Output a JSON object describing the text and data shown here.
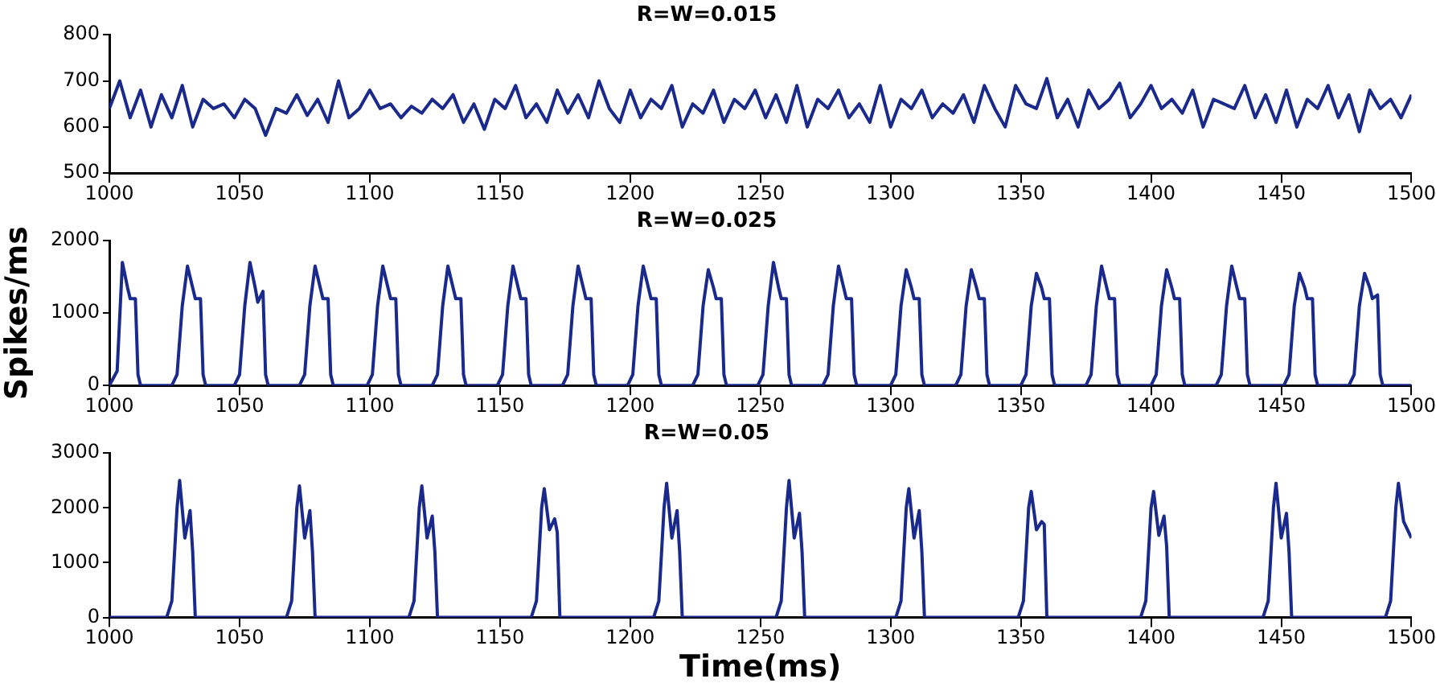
{
  "chart_data": [
    {
      "type": "line",
      "title": "R=W=0.015",
      "color": "#1a2a8c",
      "marker": "none",
      "line_style": "solid",
      "grid": false,
      "legend": false,
      "x": [
        1000,
        1004,
        1008,
        1012,
        1016,
        1020,
        1024,
        1028,
        1032,
        1036,
        1040,
        1044,
        1048,
        1052,
        1056,
        1060,
        1064,
        1068,
        1072,
        1076,
        1080,
        1084,
        1088,
        1092,
        1096,
        1100,
        1104,
        1108,
        1112,
        1116,
        1120,
        1124,
        1128,
        1132,
        1136,
        1140,
        1144,
        1148,
        1152,
        1156,
        1160,
        1164,
        1168,
        1172,
        1176,
        1180,
        1184,
        1188,
        1192,
        1196,
        1200,
        1204,
        1208,
        1212,
        1216,
        1220,
        1224,
        1228,
        1232,
        1236,
        1240,
        1244,
        1248,
        1252,
        1256,
        1260,
        1264,
        1268,
        1272,
        1276,
        1280,
        1284,
        1288,
        1292,
        1296,
        1300,
        1304,
        1308,
        1312,
        1316,
        1320,
        1324,
        1328,
        1332,
        1336,
        1340,
        1344,
        1348,
        1352,
        1356,
        1360,
        1364,
        1368,
        1372,
        1376,
        1380,
        1384,
        1388,
        1392,
        1396,
        1400,
        1404,
        1408,
        1412,
        1416,
        1420,
        1424,
        1428,
        1432,
        1436,
        1440,
        1444,
        1448,
        1452,
        1456,
        1460,
        1464,
        1468,
        1472,
        1476,
        1480,
        1484,
        1488,
        1492,
        1496,
        1500
      ],
      "values": [
        640,
        700,
        620,
        680,
        600,
        670,
        620,
        690,
        600,
        660,
        640,
        650,
        620,
        660,
        640,
        582,
        640,
        630,
        670,
        625,
        660,
        610,
        700,
        620,
        640,
        680,
        640,
        650,
        620,
        645,
        630,
        660,
        640,
        670,
        610,
        650,
        595,
        660,
        640,
        690,
        620,
        650,
        610,
        680,
        630,
        670,
        620,
        700,
        640,
        610,
        680,
        620,
        660,
        640,
        690,
        600,
        650,
        630,
        680,
        610,
        660,
        640,
        680,
        620,
        670,
        610,
        690,
        600,
        660,
        640,
        680,
        620,
        650,
        610,
        690,
        600,
        660,
        640,
        680,
        620,
        650,
        630,
        670,
        610,
        690,
        640,
        600,
        690,
        650,
        640,
        705,
        620,
        660,
        600,
        680,
        640,
        660,
        695,
        620,
        650,
        690,
        640,
        660,
        630,
        680,
        600,
        660,
        650,
        640,
        690,
        620,
        670,
        610,
        680,
        600,
        660,
        640,
        690,
        620,
        670,
        590,
        680,
        640,
        660,
        620,
        670
      ],
      "ylim": [
        500,
        800
      ],
      "yticks": [
        500,
        600,
        700,
        800
      ],
      "xlim": [
        1000,
        1500
      ],
      "xticks": [
        1000,
        1050,
        1100,
        1150,
        1200,
        1250,
        1300,
        1350,
        1400,
        1450,
        1500
      ]
    },
    {
      "type": "line",
      "title": "R=W=0.025",
      "ylabel": "Spikes/ms",
      "color": "#1a2a8c",
      "marker": "none",
      "line_style": "solid",
      "grid": false,
      "legend": false,
      "x": [
        1000,
        1003,
        1005,
        1007,
        1008,
        1010,
        1011,
        1012,
        1024,
        1026,
        1028,
        1030,
        1032,
        1033,
        1035,
        1036,
        1037,
        1048,
        1050,
        1052,
        1054,
        1056,
        1057,
        1059,
        1060,
        1061,
        1073,
        1075,
        1077,
        1079,
        1081,
        1082,
        1084,
        1085,
        1086,
        1099,
        1101,
        1103,
        1105,
        1107,
        1108,
        1110,
        1111,
        1112,
        1124,
        1126,
        1128,
        1130,
        1132,
        1133,
        1135,
        1136,
        1137,
        1149,
        1151,
        1153,
        1155,
        1157,
        1158,
        1160,
        1161,
        1162,
        1174,
        1176,
        1178,
        1180,
        1182,
        1183,
        1185,
        1186,
        1187,
        1199,
        1201,
        1203,
        1205,
        1207,
        1208,
        1210,
        1211,
        1212,
        1224,
        1226,
        1228,
        1230,
        1232,
        1233,
        1235,
        1236,
        1237,
        1249,
        1251,
        1253,
        1255,
        1257,
        1258,
        1260,
        1261,
        1262,
        1274,
        1276,
        1278,
        1280,
        1282,
        1283,
        1285,
        1286,
        1287,
        1300,
        1302,
        1304,
        1306,
        1308,
        1309,
        1311,
        1312,
        1313,
        1325,
        1327,
        1329,
        1331,
        1333,
        1334,
        1336,
        1337,
        1338,
        1350,
        1352,
        1354,
        1356,
        1358,
        1359,
        1361,
        1362,
        1363,
        1375,
        1377,
        1379,
        1381,
        1383,
        1384,
        1386,
        1387,
        1388,
        1400,
        1402,
        1404,
        1406,
        1408,
        1409,
        1411,
        1412,
        1413,
        1425,
        1427,
        1429,
        1431,
        1433,
        1434,
        1436,
        1437,
        1438,
        1451,
        1453,
        1455,
        1457,
        1459,
        1460,
        1462,
        1463,
        1464,
        1476,
        1478,
        1480,
        1482,
        1484,
        1485,
        1487,
        1488,
        1489,
        1500
      ],
      "values": [
        0,
        200,
        1700,
        1350,
        1200,
        1200,
        150,
        0,
        0,
        150,
        1100,
        1650,
        1350,
        1200,
        1200,
        150,
        0,
        0,
        150,
        1100,
        1700,
        1350,
        1150,
        1300,
        150,
        0,
        0,
        150,
        1100,
        1650,
        1350,
        1200,
        1200,
        150,
        0,
        0,
        150,
        1100,
        1650,
        1350,
        1200,
        1200,
        150,
        0,
        0,
        150,
        1100,
        1650,
        1350,
        1200,
        1200,
        150,
        0,
        0,
        150,
        1100,
        1650,
        1350,
        1200,
        1200,
        150,
        0,
        0,
        150,
        1100,
        1650,
        1350,
        1200,
        1200,
        150,
        0,
        0,
        150,
        1100,
        1650,
        1350,
        1200,
        1200,
        150,
        0,
        0,
        150,
        1100,
        1600,
        1350,
        1200,
        1200,
        150,
        0,
        0,
        150,
        1100,
        1700,
        1350,
        1200,
        1200,
        150,
        0,
        0,
        150,
        1100,
        1650,
        1350,
        1200,
        1200,
        150,
        0,
        0,
        150,
        1100,
        1600,
        1350,
        1200,
        1200,
        150,
        0,
        0,
        150,
        1100,
        1600,
        1350,
        1200,
        1200,
        150,
        0,
        0,
        150,
        1100,
        1550,
        1350,
        1200,
        1200,
        150,
        0,
        0,
        150,
        1100,
        1650,
        1350,
        1200,
        1200,
        150,
        0,
        0,
        150,
        1100,
        1600,
        1350,
        1200,
        1200,
        150,
        0,
        0,
        150,
        1100,
        1650,
        1350,
        1200,
        1200,
        150,
        0,
        0,
        150,
        1100,
        1550,
        1350,
        1200,
        1200,
        150,
        0,
        0,
        150,
        1100,
        1550,
        1350,
        1200,
        1250,
        150,
        0,
        0
      ],
      "ylim": [
        0,
        2000
      ],
      "yticks": [
        0,
        1000,
        2000
      ],
      "xlim": [
        1000,
        1500
      ],
      "xticks": [
        1000,
        1050,
        1100,
        1150,
        1200,
        1250,
        1300,
        1350,
        1400,
        1450,
        1500
      ]
    },
    {
      "type": "line",
      "title": "R=W=0.05",
      "xlabel": "Time(ms)",
      "color": "#1a2a8c",
      "marker": "none",
      "line_style": "solid",
      "grid": false,
      "legend": false,
      "x": [
        1000,
        1022,
        1024,
        1026,
        1027,
        1029,
        1031,
        1032,
        1033,
        1068,
        1070,
        1072,
        1073,
        1075,
        1077,
        1078,
        1079,
        1115,
        1117,
        1119,
        1120,
        1122,
        1124,
        1125,
        1126,
        1162,
        1164,
        1166,
        1167,
        1169,
        1171,
        1172,
        1173,
        1209,
        1211,
        1213,
        1214,
        1216,
        1218,
        1219,
        1220,
        1256,
        1258,
        1260,
        1261,
        1263,
        1265,
        1266,
        1267,
        1302,
        1304,
        1306,
        1307,
        1309,
        1311,
        1312,
        1313,
        1349,
        1351,
        1353,
        1354,
        1356,
        1358,
        1359,
        1360,
        1396,
        1398,
        1400,
        1401,
        1403,
        1405,
        1406,
        1407,
        1443,
        1445,
        1447,
        1448,
        1450,
        1452,
        1453,
        1454,
        1490,
        1492,
        1494,
        1495,
        1497,
        1500
      ],
      "values": [
        0,
        0,
        300,
        2000,
        2500,
        1450,
        1950,
        1200,
        0,
        0,
        300,
        2000,
        2400,
        1450,
        1950,
        1200,
        0,
        0,
        300,
        2000,
        2400,
        1450,
        1850,
        1200,
        0,
        0,
        300,
        2000,
        2350,
        1600,
        1800,
        1550,
        0,
        0,
        300,
        2000,
        2450,
        1450,
        1950,
        1200,
        0,
        0,
        300,
        2000,
        2500,
        1450,
        1900,
        1200,
        0,
        0,
        300,
        2000,
        2350,
        1450,
        1950,
        1200,
        0,
        0,
        300,
        2000,
        2300,
        1600,
        1750,
        1700,
        0,
        0,
        300,
        2000,
        2300,
        1500,
        1850,
        1300,
        0,
        0,
        300,
        2000,
        2450,
        1450,
        1900,
        1200,
        0,
        0,
        300,
        2000,
        2450,
        1750,
        1450
      ],
      "ylim": [
        0,
        3000
      ],
      "yticks": [
        0,
        1000,
        2000,
        3000
      ],
      "xlim": [
        1000,
        1500
      ],
      "xticks": [
        1000,
        1050,
        1100,
        1150,
        1200,
        1250,
        1300,
        1350,
        1400,
        1450,
        1500
      ]
    }
  ]
}
